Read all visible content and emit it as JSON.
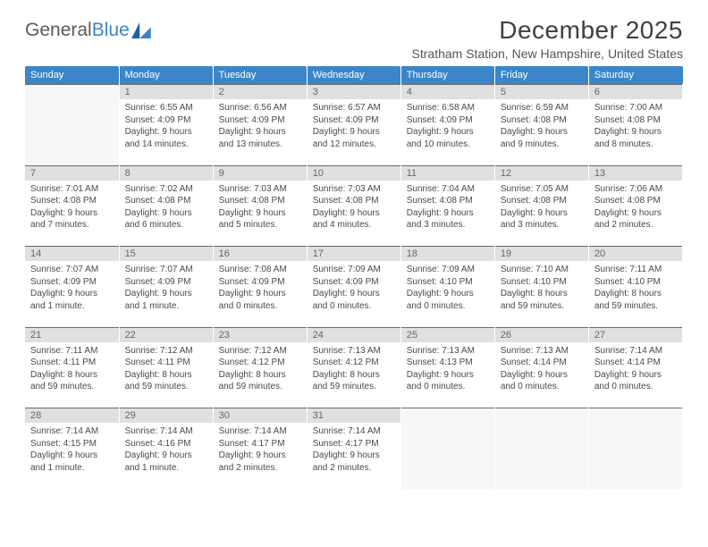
{
  "logo": {
    "text1": "General",
    "text2": "Blue"
  },
  "title": "December 2025",
  "location": "Stratham Station, New Hampshire, United States",
  "colors": {
    "header_bg": "#3a86c8",
    "header_text": "#ffffff",
    "daynum_bg": "#e0e0e0",
    "daynum_border_top": "#6a6a6a",
    "body_text": "#4a4a4a",
    "empty_bg": "#f7f7f7"
  },
  "weekdays": [
    "Sunday",
    "Monday",
    "Tuesday",
    "Wednesday",
    "Thursday",
    "Friday",
    "Saturday"
  ],
  "grid": [
    [
      null,
      {
        "n": "1",
        "sr": "6:55 AM",
        "ss": "4:09 PM",
        "dl": "9 hours and 14 minutes."
      },
      {
        "n": "2",
        "sr": "6:56 AM",
        "ss": "4:09 PM",
        "dl": "9 hours and 13 minutes."
      },
      {
        "n": "3",
        "sr": "6:57 AM",
        "ss": "4:09 PM",
        "dl": "9 hours and 12 minutes."
      },
      {
        "n": "4",
        "sr": "6:58 AM",
        "ss": "4:09 PM",
        "dl": "9 hours and 10 minutes."
      },
      {
        "n": "5",
        "sr": "6:59 AM",
        "ss": "4:08 PM",
        "dl": "9 hours and 9 minutes."
      },
      {
        "n": "6",
        "sr": "7:00 AM",
        "ss": "4:08 PM",
        "dl": "9 hours and 8 minutes."
      }
    ],
    [
      {
        "n": "7",
        "sr": "7:01 AM",
        "ss": "4:08 PM",
        "dl": "9 hours and 7 minutes."
      },
      {
        "n": "8",
        "sr": "7:02 AM",
        "ss": "4:08 PM",
        "dl": "9 hours and 6 minutes."
      },
      {
        "n": "9",
        "sr": "7:03 AM",
        "ss": "4:08 PM",
        "dl": "9 hours and 5 minutes."
      },
      {
        "n": "10",
        "sr": "7:03 AM",
        "ss": "4:08 PM",
        "dl": "9 hours and 4 minutes."
      },
      {
        "n": "11",
        "sr": "7:04 AM",
        "ss": "4:08 PM",
        "dl": "9 hours and 3 minutes."
      },
      {
        "n": "12",
        "sr": "7:05 AM",
        "ss": "4:08 PM",
        "dl": "9 hours and 3 minutes."
      },
      {
        "n": "13",
        "sr": "7:06 AM",
        "ss": "4:08 PM",
        "dl": "9 hours and 2 minutes."
      }
    ],
    [
      {
        "n": "14",
        "sr": "7:07 AM",
        "ss": "4:09 PM",
        "dl": "9 hours and 1 minute."
      },
      {
        "n": "15",
        "sr": "7:07 AM",
        "ss": "4:09 PM",
        "dl": "9 hours and 1 minute."
      },
      {
        "n": "16",
        "sr": "7:08 AM",
        "ss": "4:09 PM",
        "dl": "9 hours and 0 minutes."
      },
      {
        "n": "17",
        "sr": "7:09 AM",
        "ss": "4:09 PM",
        "dl": "9 hours and 0 minutes."
      },
      {
        "n": "18",
        "sr": "7:09 AM",
        "ss": "4:10 PM",
        "dl": "9 hours and 0 minutes."
      },
      {
        "n": "19",
        "sr": "7:10 AM",
        "ss": "4:10 PM",
        "dl": "8 hours and 59 minutes."
      },
      {
        "n": "20",
        "sr": "7:11 AM",
        "ss": "4:10 PM",
        "dl": "8 hours and 59 minutes."
      }
    ],
    [
      {
        "n": "21",
        "sr": "7:11 AM",
        "ss": "4:11 PM",
        "dl": "8 hours and 59 minutes."
      },
      {
        "n": "22",
        "sr": "7:12 AM",
        "ss": "4:11 PM",
        "dl": "8 hours and 59 minutes."
      },
      {
        "n": "23",
        "sr": "7:12 AM",
        "ss": "4:12 PM",
        "dl": "8 hours and 59 minutes."
      },
      {
        "n": "24",
        "sr": "7:13 AM",
        "ss": "4:12 PM",
        "dl": "8 hours and 59 minutes."
      },
      {
        "n": "25",
        "sr": "7:13 AM",
        "ss": "4:13 PM",
        "dl": "9 hours and 0 minutes."
      },
      {
        "n": "26",
        "sr": "7:13 AM",
        "ss": "4:14 PM",
        "dl": "9 hours and 0 minutes."
      },
      {
        "n": "27",
        "sr": "7:14 AM",
        "ss": "4:14 PM",
        "dl": "9 hours and 0 minutes."
      }
    ],
    [
      {
        "n": "28",
        "sr": "7:14 AM",
        "ss": "4:15 PM",
        "dl": "9 hours and 1 minute."
      },
      {
        "n": "29",
        "sr": "7:14 AM",
        "ss": "4:16 PM",
        "dl": "9 hours and 1 minute."
      },
      {
        "n": "30",
        "sr": "7:14 AM",
        "ss": "4:17 PM",
        "dl": "9 hours and 2 minutes."
      },
      {
        "n": "31",
        "sr": "7:14 AM",
        "ss": "4:17 PM",
        "dl": "9 hours and 2 minutes."
      },
      null,
      null,
      null
    ]
  ],
  "labels": {
    "sunrise": "Sunrise:",
    "sunset": "Sunset:",
    "daylight": "Daylight:"
  }
}
